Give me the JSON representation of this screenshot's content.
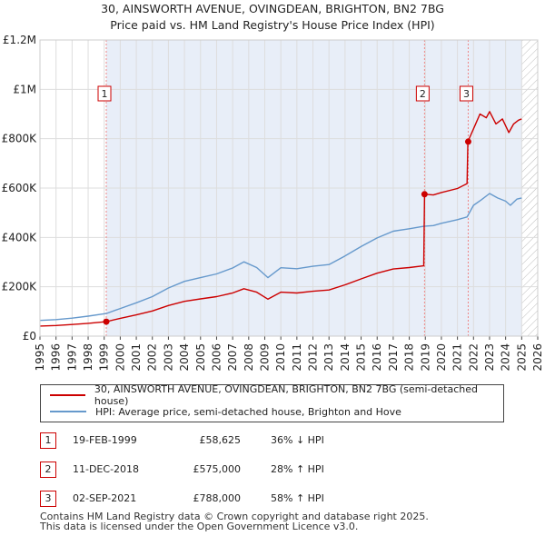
{
  "title_line1": "30, AINSWORTH AVENUE, OVINGDEAN, BRIGHTON, BN2 7BG",
  "title_line2": "Price paid vs. HM Land Registry's House Price Index (HPI)",
  "colors": {
    "price_line": "#cc0000",
    "hpi_line": "#6699cc",
    "shade": "#e8eef8",
    "grid": "#dddddd",
    "marker_line": "#ee8888"
  },
  "chart_data": {
    "type": "line",
    "xlabel": "",
    "ylabel": "",
    "xlim": [
      1995.0,
      2026.0
    ],
    "ylim": [
      0,
      1200000
    ],
    "x_ticks": [
      "1995",
      "1996",
      "1997",
      "1998",
      "1999",
      "2000",
      "2001",
      "2002",
      "2003",
      "2004",
      "2005",
      "2006",
      "2007",
      "2008",
      "2009",
      "2010",
      "2011",
      "2012",
      "2013",
      "2014",
      "2015",
      "2016",
      "2017",
      "2018",
      "2019",
      "2020",
      "2021",
      "2022",
      "2023",
      "2024",
      "2025",
      "2026"
    ],
    "y_ticks": [
      {
        "value": 0,
        "label": "£0"
      },
      {
        "value": 200000,
        "label": "£200K"
      },
      {
        "value": 400000,
        "label": "£400K"
      },
      {
        "value": 600000,
        "label": "£600K"
      },
      {
        "value": 800000,
        "label": "£800K"
      },
      {
        "value": 1000000,
        "label": "£1M"
      },
      {
        "value": 1200000,
        "label": "£1.2M"
      }
    ],
    "shaded_ranges": [
      [
        1999.13,
        2025.0
      ]
    ],
    "hatched_range": [
      2025.0,
      2026.0
    ],
    "series": [
      {
        "name": "30, AINSWORTH AVENUE, OVINGDEAN, BRIGHTON, BN2 7BG (semi-detached house)",
        "color": "#cc0000",
        "x": [
          1995.0,
          1996.0,
          1997.0,
          1998.0,
          1999.13,
          2000.0,
          2001.0,
          2002.0,
          2003.0,
          2004.0,
          2005.0,
          2006.0,
          2007.0,
          2007.7,
          2008.5,
          2009.2,
          2010.0,
          2011.0,
          2012.0,
          2013.0,
          2014.0,
          2015.0,
          2016.0,
          2017.0,
          2018.0,
          2018.9,
          2018.95,
          2019.5,
          2020.0,
          2021.0,
          2021.6,
          2021.65,
          2022.0,
          2022.4,
          2022.8,
          2023.0,
          2023.4,
          2023.8,
          2024.2,
          2024.5,
          2024.8,
          2025.0
        ],
        "values": [
          41000,
          43000,
          47000,
          52000,
          58625,
          72000,
          86000,
          102000,
          124000,
          141000,
          151000,
          160000,
          175000,
          192000,
          178000,
          150000,
          178000,
          175000,
          182000,
          187000,
          208000,
          232000,
          255000,
          272000,
          278000,
          285000,
          575000,
          572000,
          582000,
          598000,
          618000,
          788000,
          840000,
          900000,
          885000,
          910000,
          860000,
          880000,
          825000,
          860000,
          875000,
          880000
        ]
      },
      {
        "name": "HPI: Average price, semi-detached house, Brighton and Hove",
        "color": "#6699cc",
        "x": [
          1995.0,
          1996.0,
          1997.0,
          1998.0,
          1999.13,
          2000.0,
          2001.0,
          2002.0,
          2003.0,
          2004.0,
          2005.0,
          2006.0,
          2007.0,
          2007.7,
          2008.5,
          2009.2,
          2010.0,
          2011.0,
          2012.0,
          2013.0,
          2014.0,
          2015.0,
          2016.0,
          2017.0,
          2018.0,
          2018.9,
          2019.5,
          2020.0,
          2021.0,
          2021.6,
          2022.0,
          2022.5,
          2023.0,
          2023.5,
          2024.0,
          2024.3,
          2024.7,
          2025.0
        ],
        "values": [
          63500,
          67000,
          73000,
          81000,
          91500,
          112000,
          135000,
          160000,
          195000,
          222000,
          237000,
          252000,
          276000,
          301000,
          278000,
          237000,
          277000,
          273000,
          283000,
          290000,
          325000,
          363000,
          398000,
          425000,
          435000,
          445000,
          448000,
          457000,
          472000,
          483000,
          530000,
          553000,
          578000,
          560000,
          547000,
          530000,
          555000,
          560000
        ]
      }
    ],
    "sale_markers": [
      {
        "label": "1",
        "x": 1999.13,
        "value": 58625
      },
      {
        "label": "2",
        "x": 2018.95,
        "value": 575000
      },
      {
        "label": "3",
        "x": 2021.67,
        "value": 788000
      }
    ]
  },
  "legend": {
    "price_label": "30, AINSWORTH AVENUE, OVINGDEAN, BRIGHTON, BN2 7BG (semi-detached house)",
    "hpi_label": "HPI: Average price, semi-detached house, Brighton and Hove"
  },
  "sales": [
    {
      "num": "1",
      "date": "19-FEB-1999",
      "price": "£58,625",
      "hpi": "36% ↓ HPI"
    },
    {
      "num": "2",
      "date": "11-DEC-2018",
      "price": "£575,000",
      "hpi": "28% ↑ HPI"
    },
    {
      "num": "3",
      "date": "02-SEP-2021",
      "price": "£788,000",
      "hpi": "58% ↑ HPI"
    }
  ],
  "footer": {
    "line1": "Contains HM Land Registry data © Crown copyright and database right 2025.",
    "line2": "This data is licensed under the Open Government Licence v3.0."
  }
}
